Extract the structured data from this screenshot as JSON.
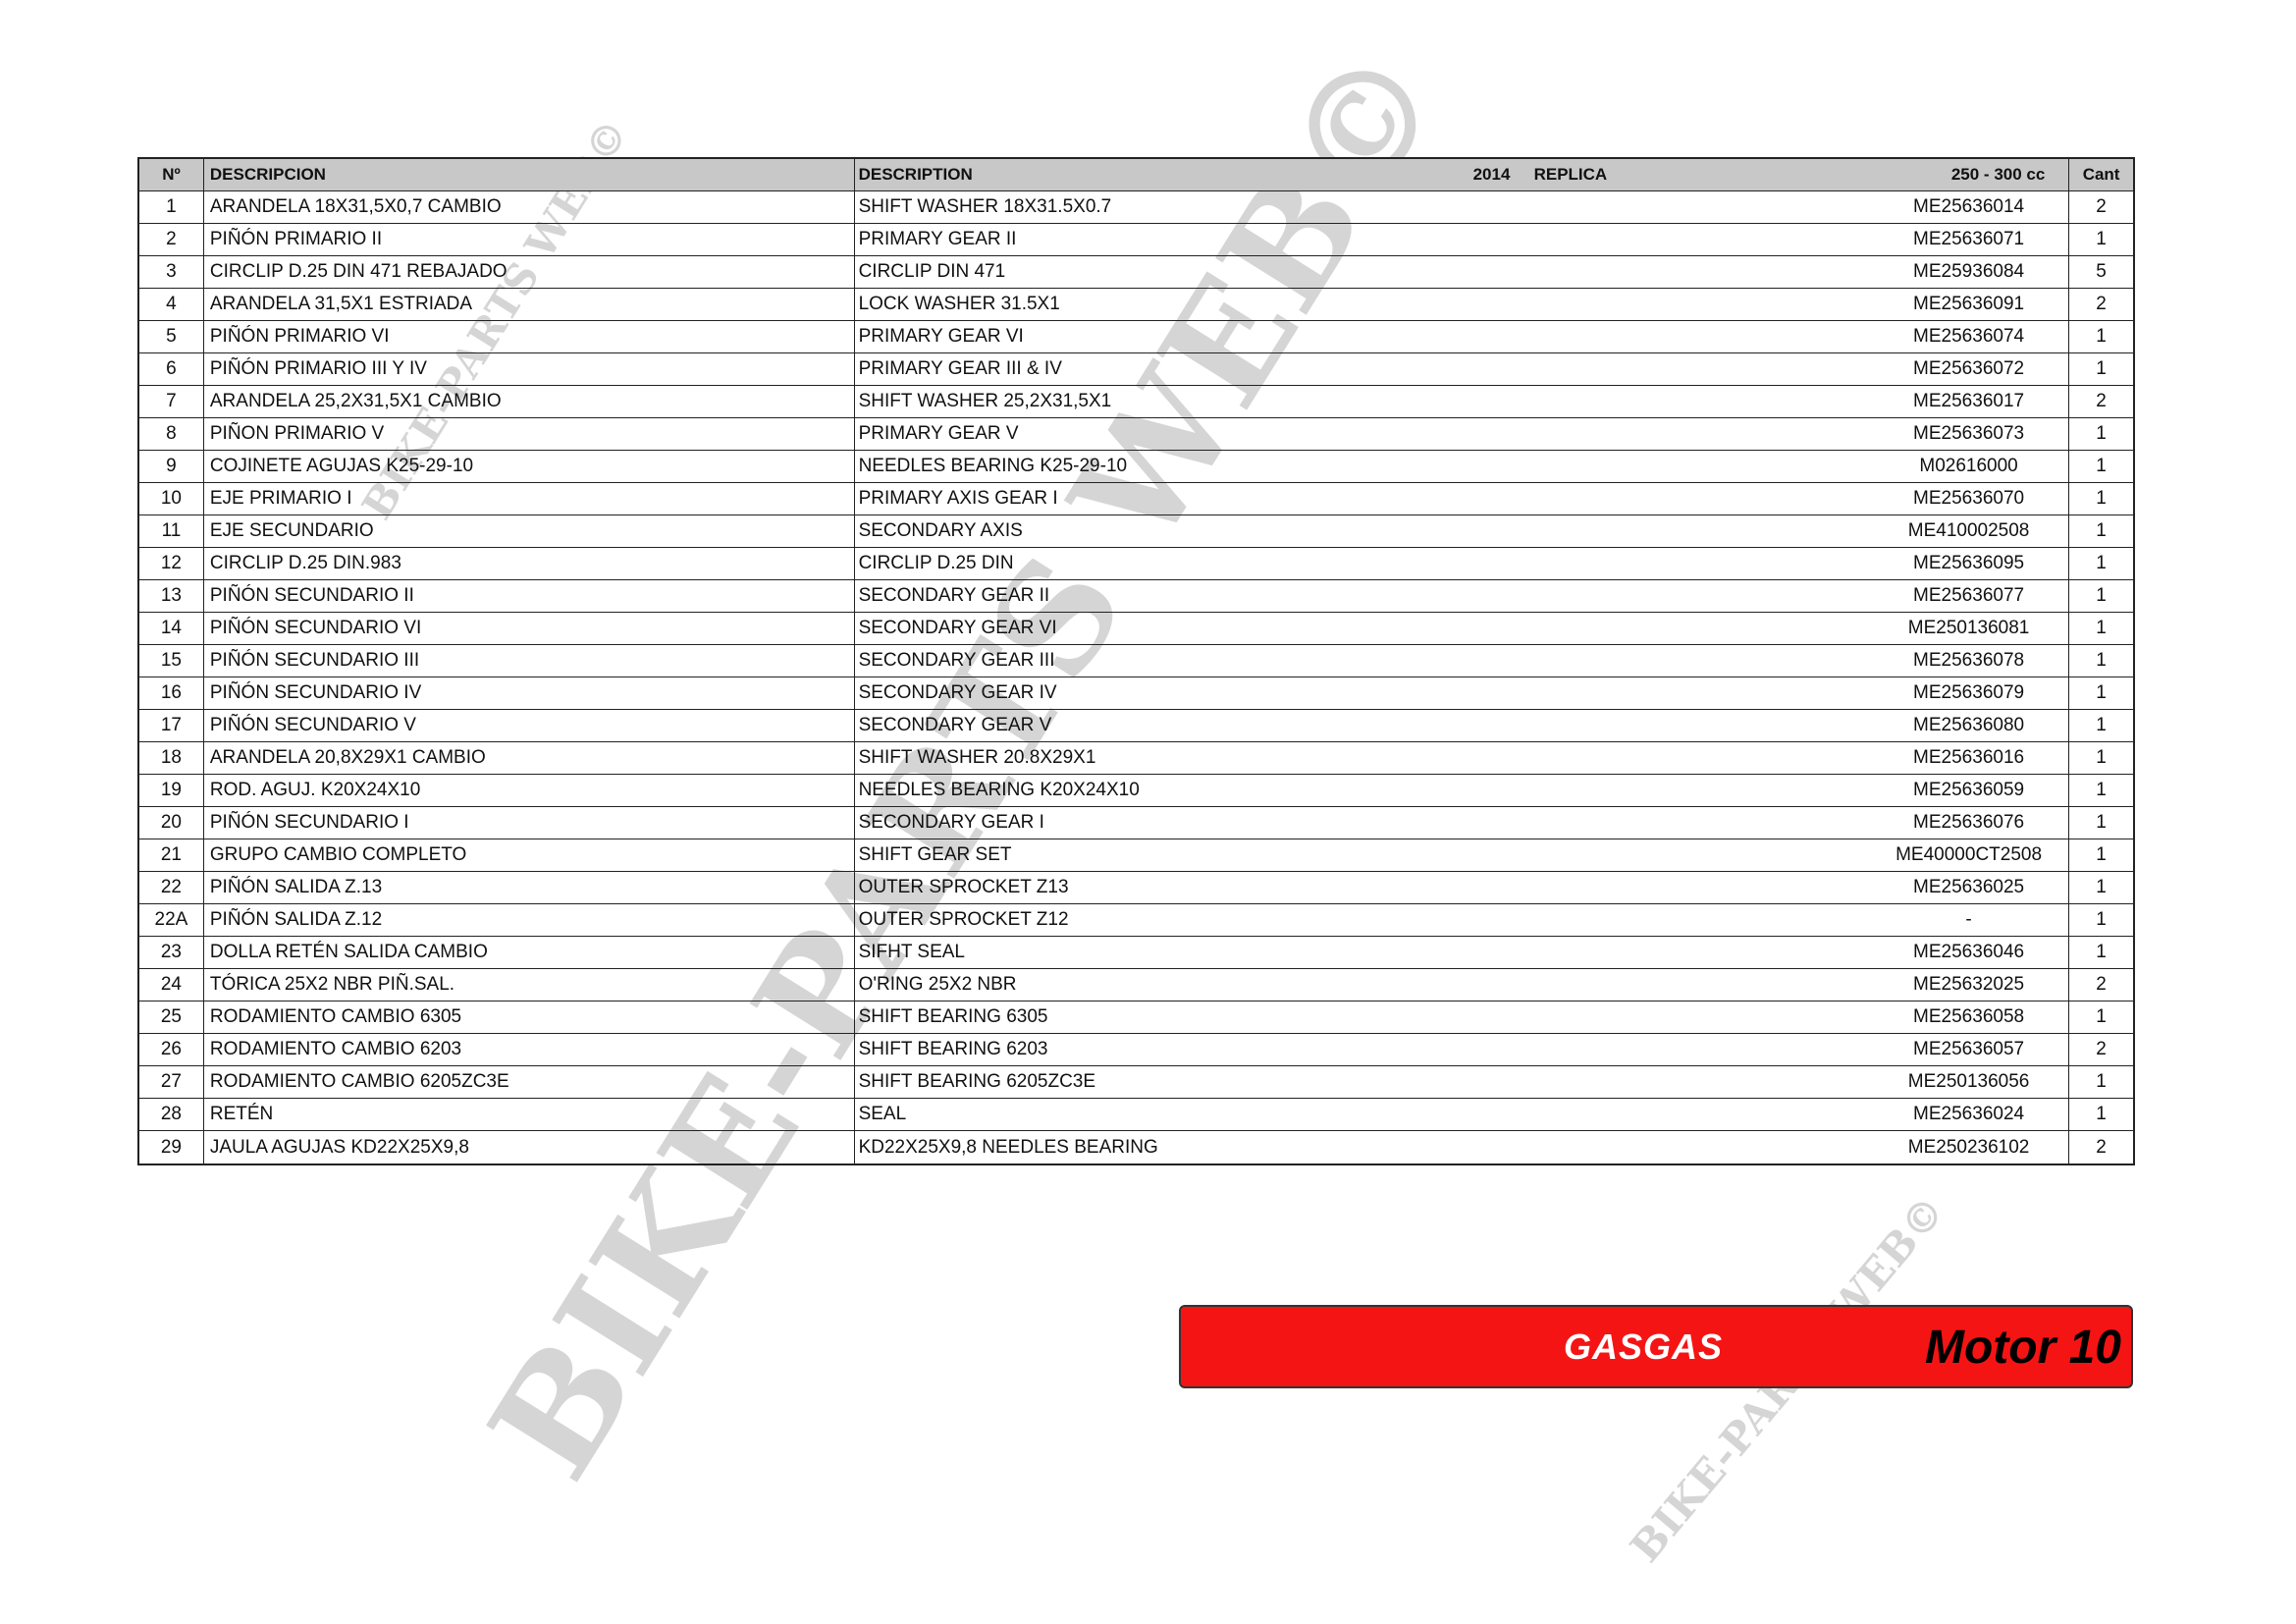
{
  "header": {
    "no": "Nº",
    "descripcion": "DESCRIPCION",
    "description": "DESCRIPTION",
    "year": "2014",
    "model": "REPLICA",
    "cc": "250 - 300 cc",
    "cant": "Cant"
  },
  "rows": [
    {
      "no": "1",
      "es": "ARANDELA 18X31,5X0,7 CAMBIO",
      "en": "SHIFT WASHER 18X31.5X0.7",
      "ref": "ME25636014",
      "qty": "2"
    },
    {
      "no": "2",
      "es": "PIÑÓN PRIMARIO II",
      "en": "PRIMARY GEAR II",
      "ref": "ME25636071",
      "qty": "1"
    },
    {
      "no": "3",
      "es": "CIRCLIP D.25 DIN 471 REBAJADO",
      "en": "CIRCLIP DIN 471",
      "ref": "ME25936084",
      "qty": "5"
    },
    {
      "no": "4",
      "es": "ARANDELA 31,5X1 ESTRIADA",
      "en": "LOCK WASHER 31.5X1",
      "ref": "ME25636091",
      "qty": "2"
    },
    {
      "no": "5",
      "es": "PIÑÓN PRIMARIO VI",
      "en": "PRIMARY GEAR VI",
      "ref": "ME25636074",
      "qty": "1"
    },
    {
      "no": "6",
      "es": "PIÑÓN PRIMARIO III Y IV",
      "en": "PRIMARY GEAR III & IV",
      "ref": "ME25636072",
      "qty": "1"
    },
    {
      "no": "7",
      "es": "ARANDELA 25,2X31,5X1 CAMBIO",
      "en": "SHIFT WASHER 25,2X31,5X1",
      "ref": "ME25636017",
      "qty": "2"
    },
    {
      "no": "8",
      "es": "PIÑON PRIMARIO V",
      "en": "PRIMARY GEAR V",
      "ref": "ME25636073",
      "qty": "1"
    },
    {
      "no": "9",
      "es": "COJINETE AGUJAS K25-29-10",
      "en": "NEEDLES BEARING K25-29-10",
      "ref": "M02616000",
      "qty": "1"
    },
    {
      "no": "10",
      "es": "EJE PRIMARIO I",
      "en": "PRIMARY AXIS GEAR I",
      "ref": "ME25636070",
      "qty": "1"
    },
    {
      "no": "11",
      "es": "EJE SECUNDARIO",
      "en": "SECONDARY AXIS",
      "ref": "ME410002508",
      "qty": "1"
    },
    {
      "no": "12",
      "es": "CIRCLIP D.25 DIN.983",
      "en": "CIRCLIP D.25 DIN",
      "ref": "ME25636095",
      "qty": "1"
    },
    {
      "no": "13",
      "es": "PIÑÓN SECUNDARIO II",
      "en": "SECONDARY GEAR II",
      "ref": "ME25636077",
      "qty": "1"
    },
    {
      "no": "14",
      "es": "PIÑÓN SECUNDARIO VI",
      "en": "SECONDARY GEAR VI",
      "ref": "ME250136081",
      "qty": "1"
    },
    {
      "no": "15",
      "es": "PIÑÓN SECUNDARIO III",
      "en": "SECONDARY GEAR III",
      "ref": "ME25636078",
      "qty": "1"
    },
    {
      "no": "16",
      "es": "PIÑÓN SECUNDARIO IV",
      "en": "SECONDARY GEAR IV",
      "ref": "ME25636079",
      "qty": "1"
    },
    {
      "no": "17",
      "es": "PIÑÓN SECUNDARIO V",
      "en": "SECONDARY GEAR V",
      "ref": "ME25636080",
      "qty": "1"
    },
    {
      "no": "18",
      "es": "ARANDELA 20,8X29X1 CAMBIO",
      "en": "SHIFT WASHER 20.8X29X1",
      "ref": "ME25636016",
      "qty": "1"
    },
    {
      "no": "19",
      "es": "ROD. AGUJ. K20X24X10",
      "en": "NEEDLES BEARING K20X24X10",
      "ref": "ME25636059",
      "qty": "1"
    },
    {
      "no": "20",
      "es": "PIÑÓN SECUNDARIO I",
      "en": "SECONDARY GEAR I",
      "ref": "ME25636076",
      "qty": "1"
    },
    {
      "no": "21",
      "es": "GRUPO CAMBIO COMPLETO",
      "en": "SHIFT GEAR SET",
      "ref": "ME40000CT2508",
      "qty": "1"
    },
    {
      "no": "22",
      "es": "PIÑÓN SALIDA Z.13",
      "en": "OUTER SPROCKET Z13",
      "ref": "ME25636025",
      "qty": "1"
    },
    {
      "no": "22A",
      "es": "PIÑÓN SALIDA Z.12",
      "en": "OUTER SPROCKET Z12",
      "ref": "-",
      "qty": "1"
    },
    {
      "no": "23",
      "es": "DOLLA RETÉN SALIDA CAMBIO",
      "en": "SIFHT SEAL",
      "ref": "ME25636046",
      "qty": "1"
    },
    {
      "no": "24",
      "es": "TÓRICA 25X2 NBR PIÑ.SAL.",
      "en": "O'RING 25X2 NBR",
      "ref": "ME25632025",
      "qty": "2"
    },
    {
      "no": "25",
      "es": "RODAMIENTO CAMBIO 6305",
      "en": "SHIFT BEARING 6305",
      "ref": "ME25636058",
      "qty": "1"
    },
    {
      "no": "26",
      "es": "RODAMIENTO CAMBIO 6203",
      "en": "SHIFT BEARING 6203",
      "ref": "ME25636057",
      "qty": "2"
    },
    {
      "no": "27",
      "es": "RODAMIENTO CAMBIO 6205ZC3E",
      "en": "SHIFT BEARING 6205ZC3E",
      "ref": "ME250136056",
      "qty": "1"
    },
    {
      "no": "28",
      "es": "RETÉN",
      "en": "SEAL",
      "ref": "ME25636024",
      "qty": "1"
    },
    {
      "no": "29",
      "es": "JAULA AGUJAS KD22X25X9,8",
      "en": "KD22X25X9,8 NEEDLES BEARING",
      "ref": "ME250236102",
      "qty": "2"
    }
  ],
  "banner": {
    "brand": "GASGAS",
    "title": "Motor 10",
    "color": "#f51414"
  },
  "watermark": "BIKE-PARTS WEB©"
}
